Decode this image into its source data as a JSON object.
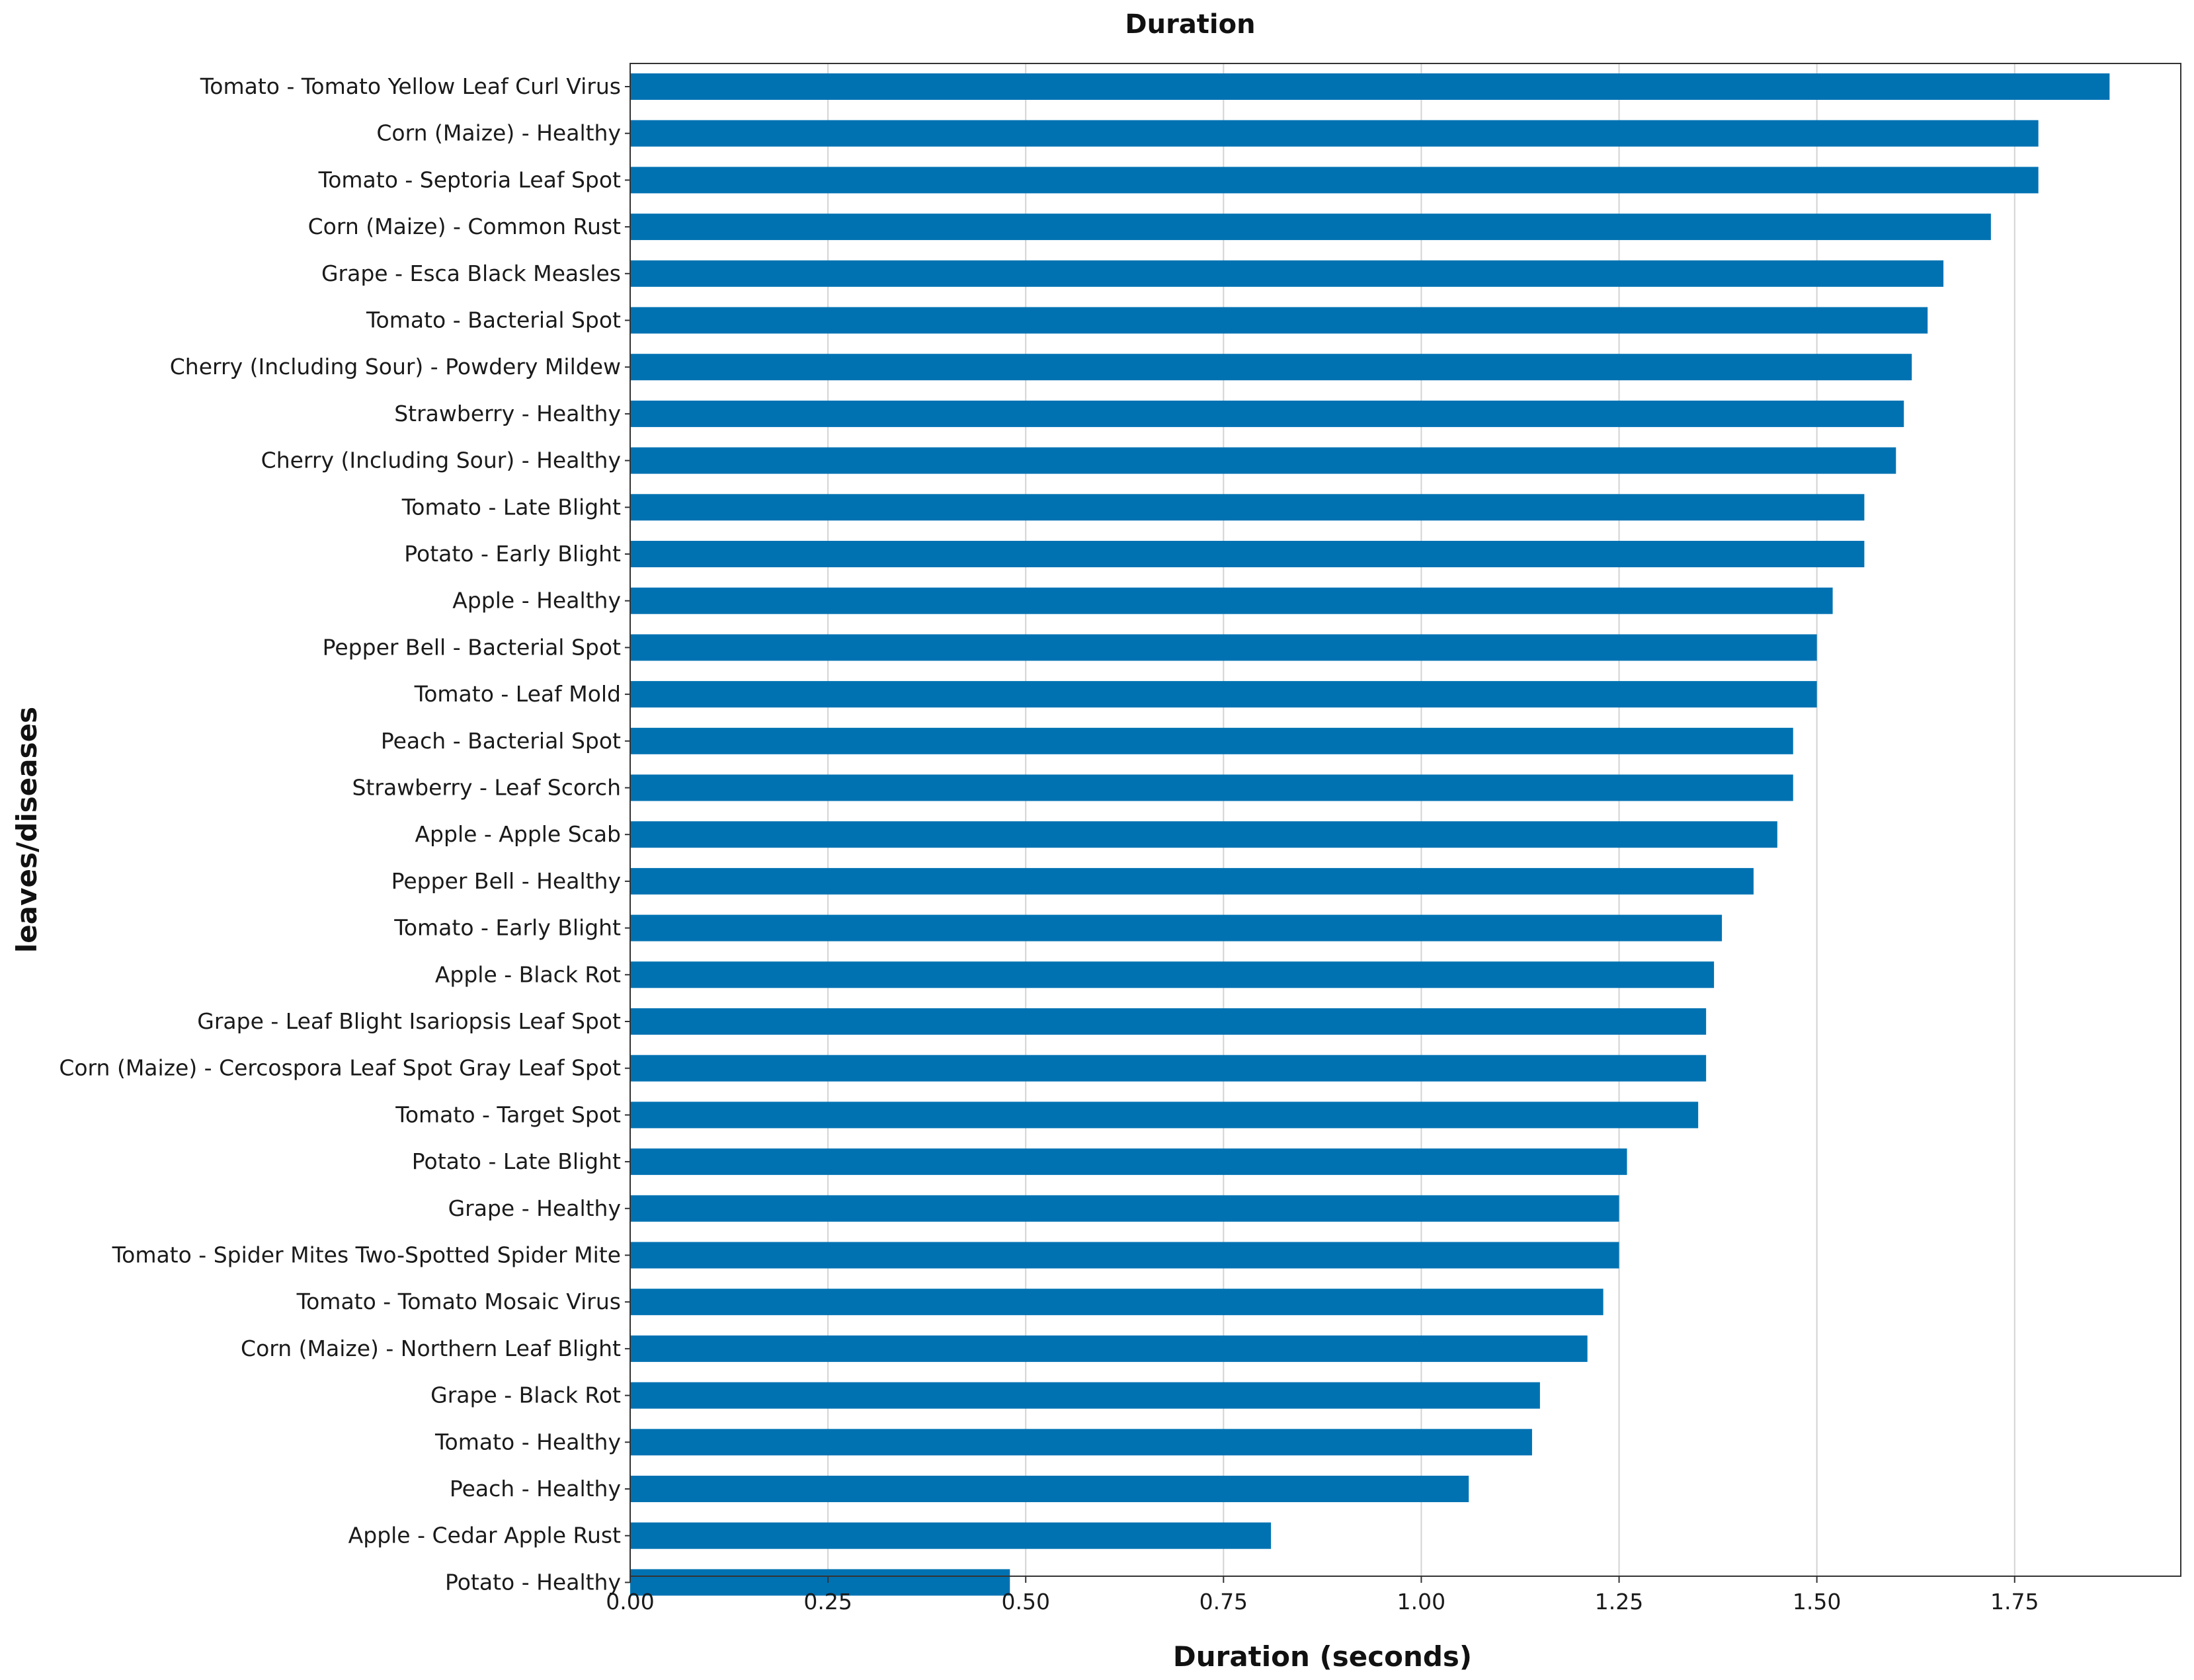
{
  "chart_data": {
    "type": "bar",
    "orientation": "horizontal",
    "title": "Duration",
    "xlabel": "Duration (seconds)",
    "ylabel": "leaves/diseases",
    "xlim": [
      0,
      1.96
    ],
    "xticks": [
      0.0,
      0.25,
      0.5,
      0.75,
      1.0,
      1.25,
      1.5,
      1.75
    ],
    "xtick_labels": [
      "0.00",
      "0.25",
      "0.50",
      "0.75",
      "1.00",
      "1.25",
      "1.50",
      "1.75"
    ],
    "grid": "vertical",
    "bar_color": "#0072b2",
    "categories": [
      "Tomato - Tomato Yellow Leaf Curl Virus",
      "Corn (Maize) - Healthy",
      "Tomato - Septoria Leaf Spot",
      "Corn (Maize) - Common Rust",
      "Grape - Esca Black Measles",
      "Tomato - Bacterial Spot",
      "Cherry (Including Sour) - Powdery Mildew",
      "Strawberry - Healthy",
      "Cherry (Including Sour) - Healthy",
      "Tomato - Late Blight",
      "Potato - Early Blight",
      "Apple - Healthy",
      "Pepper Bell - Bacterial Spot",
      "Tomato - Leaf Mold",
      "Peach - Bacterial Spot",
      "Strawberry - Leaf Scorch",
      "Apple - Apple Scab",
      "Pepper Bell - Healthy",
      "Tomato - Early Blight",
      "Apple - Black Rot",
      "Grape - Leaf Blight Isariopsis Leaf Spot",
      "Corn (Maize) - Cercospora Leaf Spot Gray Leaf Spot",
      "Tomato - Target Spot",
      "Potato - Late Blight",
      "Grape - Healthy",
      "Tomato - Spider Mites Two-Spotted Spider Mite",
      "Tomato - Tomato Mosaic Virus",
      "Corn (Maize) - Northern Leaf Blight",
      "Grape - Black Rot",
      "Tomato - Healthy",
      "Peach - Healthy",
      "Apple - Cedar Apple Rust",
      "Potato - Healthy"
    ],
    "values": [
      1.87,
      1.78,
      1.78,
      1.72,
      1.66,
      1.64,
      1.62,
      1.61,
      1.6,
      1.56,
      1.56,
      1.52,
      1.5,
      1.5,
      1.47,
      1.47,
      1.45,
      1.42,
      1.38,
      1.37,
      1.36,
      1.36,
      1.35,
      1.26,
      1.25,
      1.25,
      1.23,
      1.21,
      1.15,
      1.14,
      1.06,
      0.81,
      0.48
    ]
  }
}
